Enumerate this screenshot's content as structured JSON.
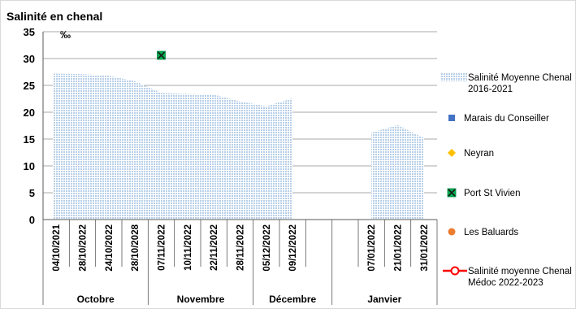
{
  "chart_data": {
    "type": "area",
    "title": "Salinité en chenal",
    "y_unit": "‰",
    "ylim": [
      0,
      35
    ],
    "yticks": [
      0,
      5,
      10,
      15,
      20,
      25,
      30,
      35
    ],
    "grid": true,
    "legend_position": "right",
    "categories": [
      "04/10/2021",
      "28/10/2022",
      "24/10/2022",
      "28/10/2028",
      "07/11/2022",
      "10/11/2022",
      "22/11/2022",
      "28/11/2022",
      "05/12/2022",
      "09/12/2022",
      "",
      "",
      "07/01/2022",
      "21/01/2022",
      "31/01/2022"
    ],
    "groups": [
      {
        "label": "Octobre",
        "start": 0,
        "end": 3
      },
      {
        "label": "Novembre",
        "start": 4,
        "end": 7
      },
      {
        "label": "Décembre",
        "start": 8,
        "end": 10
      },
      {
        "label": "Janvier",
        "start": 11,
        "end": 14
      }
    ],
    "series": [
      {
        "name": "Salinité Moyenne Chenal 2016-2021",
        "type": "area",
        "color": "#bdd7ee",
        "values": [
          27.2,
          27.1,
          26.8,
          25.8,
          23.6,
          23.4,
          23.3,
          22.0,
          21.1,
          22.6,
          null,
          null,
          16.2,
          17.6,
          15.2
        ],
        "edge_values": [
          27.2,
          null
        ]
      },
      {
        "name": "Marais du Conseiller",
        "type": "scatter",
        "marker": "square",
        "color": "#4472c4",
        "values": [
          null,
          null,
          null,
          null,
          null,
          null,
          null,
          null,
          null,
          null,
          null,
          null,
          null,
          null,
          null
        ]
      },
      {
        "name": "Neyran",
        "type": "scatter",
        "marker": "diamond",
        "color": "#ffc000",
        "values": [
          null,
          null,
          null,
          null,
          null,
          null,
          null,
          null,
          null,
          null,
          null,
          null,
          null,
          null,
          null
        ]
      },
      {
        "name": "Port St Vivien",
        "type": "scatter",
        "marker": "x-square",
        "color": "#00b050",
        "values": [
          null,
          null,
          null,
          null,
          30.6,
          null,
          null,
          null,
          null,
          null,
          null,
          null,
          null,
          null,
          null
        ]
      },
      {
        "name": "Les Baluards",
        "type": "scatter",
        "marker": "circle",
        "color": "#ed7d31",
        "values": [
          null,
          null,
          null,
          null,
          null,
          null,
          null,
          null,
          null,
          null,
          null,
          null,
          null,
          null,
          null
        ]
      },
      {
        "name": "Salinité moyenne Chenal Médoc 2022-2023",
        "type": "line",
        "marker": "circle",
        "color": "#ff0000",
        "values": [
          null,
          null,
          null,
          null,
          null,
          null,
          null,
          null,
          null,
          null,
          null,
          null,
          null,
          null,
          null
        ]
      }
    ],
    "legend": [
      [
        "Salinité Moyenne Chenal",
        "2016-2021"
      ],
      [
        "Marais du Conseiller"
      ],
      [
        "Neyran"
      ],
      [
        "Port St Vivien"
      ],
      [
        "Les Baluards"
      ],
      [
        "Salinité moyenne Chenal",
        "Médoc 2022-2023"
      ]
    ]
  }
}
